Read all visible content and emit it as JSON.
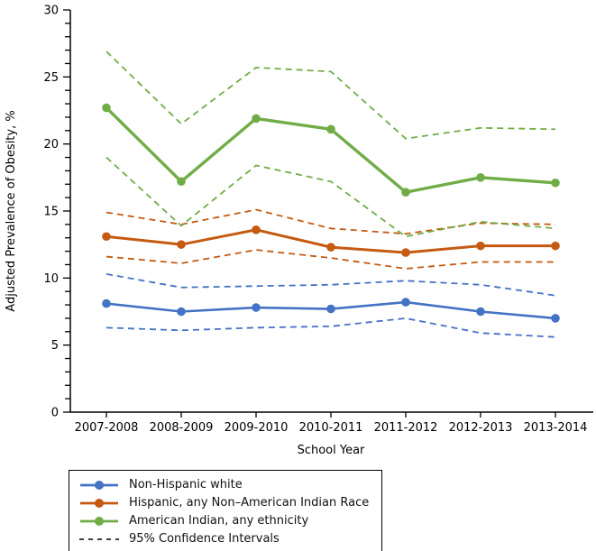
{
  "chart_data": {
    "type": "line",
    "title": "",
    "xlabel": "School Year",
    "ylabel": "Adjusted Prevalence of Obesity, %",
    "ylim": [
      0,
      30
    ],
    "y_major_ticks": [
      0,
      5,
      10,
      15,
      20,
      25,
      30
    ],
    "y_minor_tick_step": 1,
    "grid": "off",
    "legend_position": "bottom-left",
    "categories": [
      "2007-2008",
      "2008-2009",
      "2009-2010",
      "2010-2011",
      "2011-2012",
      "2012-2013",
      "2013-2014"
    ],
    "series": [
      {
        "name": "Non-Hispanic white",
        "color": "#4472C4",
        "line_style": "solid",
        "marker": "circle",
        "values": [
          8.1,
          7.5,
          7.8,
          7.7,
          8.2,
          7.5,
          7.0
        ],
        "ci_upper": [
          10.3,
          9.3,
          9.4,
          9.5,
          9.8,
          9.5,
          8.7
        ],
        "ci_lower": [
          6.3,
          6.1,
          6.3,
          6.4,
          7.0,
          5.9,
          5.6
        ]
      },
      {
        "name": "Hispanic, any Non–American Indian Race",
        "color": "#C55A11",
        "line_style": "solid",
        "marker": "circle",
        "values": [
          13.1,
          12.5,
          13.6,
          12.3,
          11.9,
          12.4,
          12.4
        ],
        "ci_upper": [
          14.9,
          14.0,
          15.1,
          13.7,
          13.3,
          14.1,
          14.0
        ],
        "ci_lower": [
          11.6,
          11.1,
          12.1,
          11.5,
          10.7,
          11.2,
          11.2
        ]
      },
      {
        "name": "American Indian, any ethnicity",
        "color": "#70AD47",
        "line_style": "solid",
        "marker": "circle",
        "values": [
          22.7,
          17.2,
          21.9,
          21.1,
          16.4,
          17.5,
          17.1
        ],
        "ci_upper": [
          26.9,
          21.5,
          25.7,
          25.4,
          20.4,
          21.2,
          21.1
        ],
        "ci_lower": [
          19.0,
          13.9,
          18.4,
          17.2,
          13.1,
          14.2,
          13.7
        ]
      }
    ],
    "ci_label": "95% Confidence Intervals",
    "ci_line_style": "dashed"
  },
  "legend": {
    "items": [
      {
        "label": "Non-Hispanic white",
        "color": "#4472C4",
        "marker": "line-dot"
      },
      {
        "label": "Hispanic, any Non–American Indian Race",
        "color": "#C55A11",
        "marker": "line-dot"
      },
      {
        "label": "American Indian, any ethnicity",
        "color": "#70AD47",
        "marker": "line-dot"
      },
      {
        "label": "95% Confidence Intervals",
        "color": "#000000",
        "marker": "dashed-line"
      }
    ]
  }
}
